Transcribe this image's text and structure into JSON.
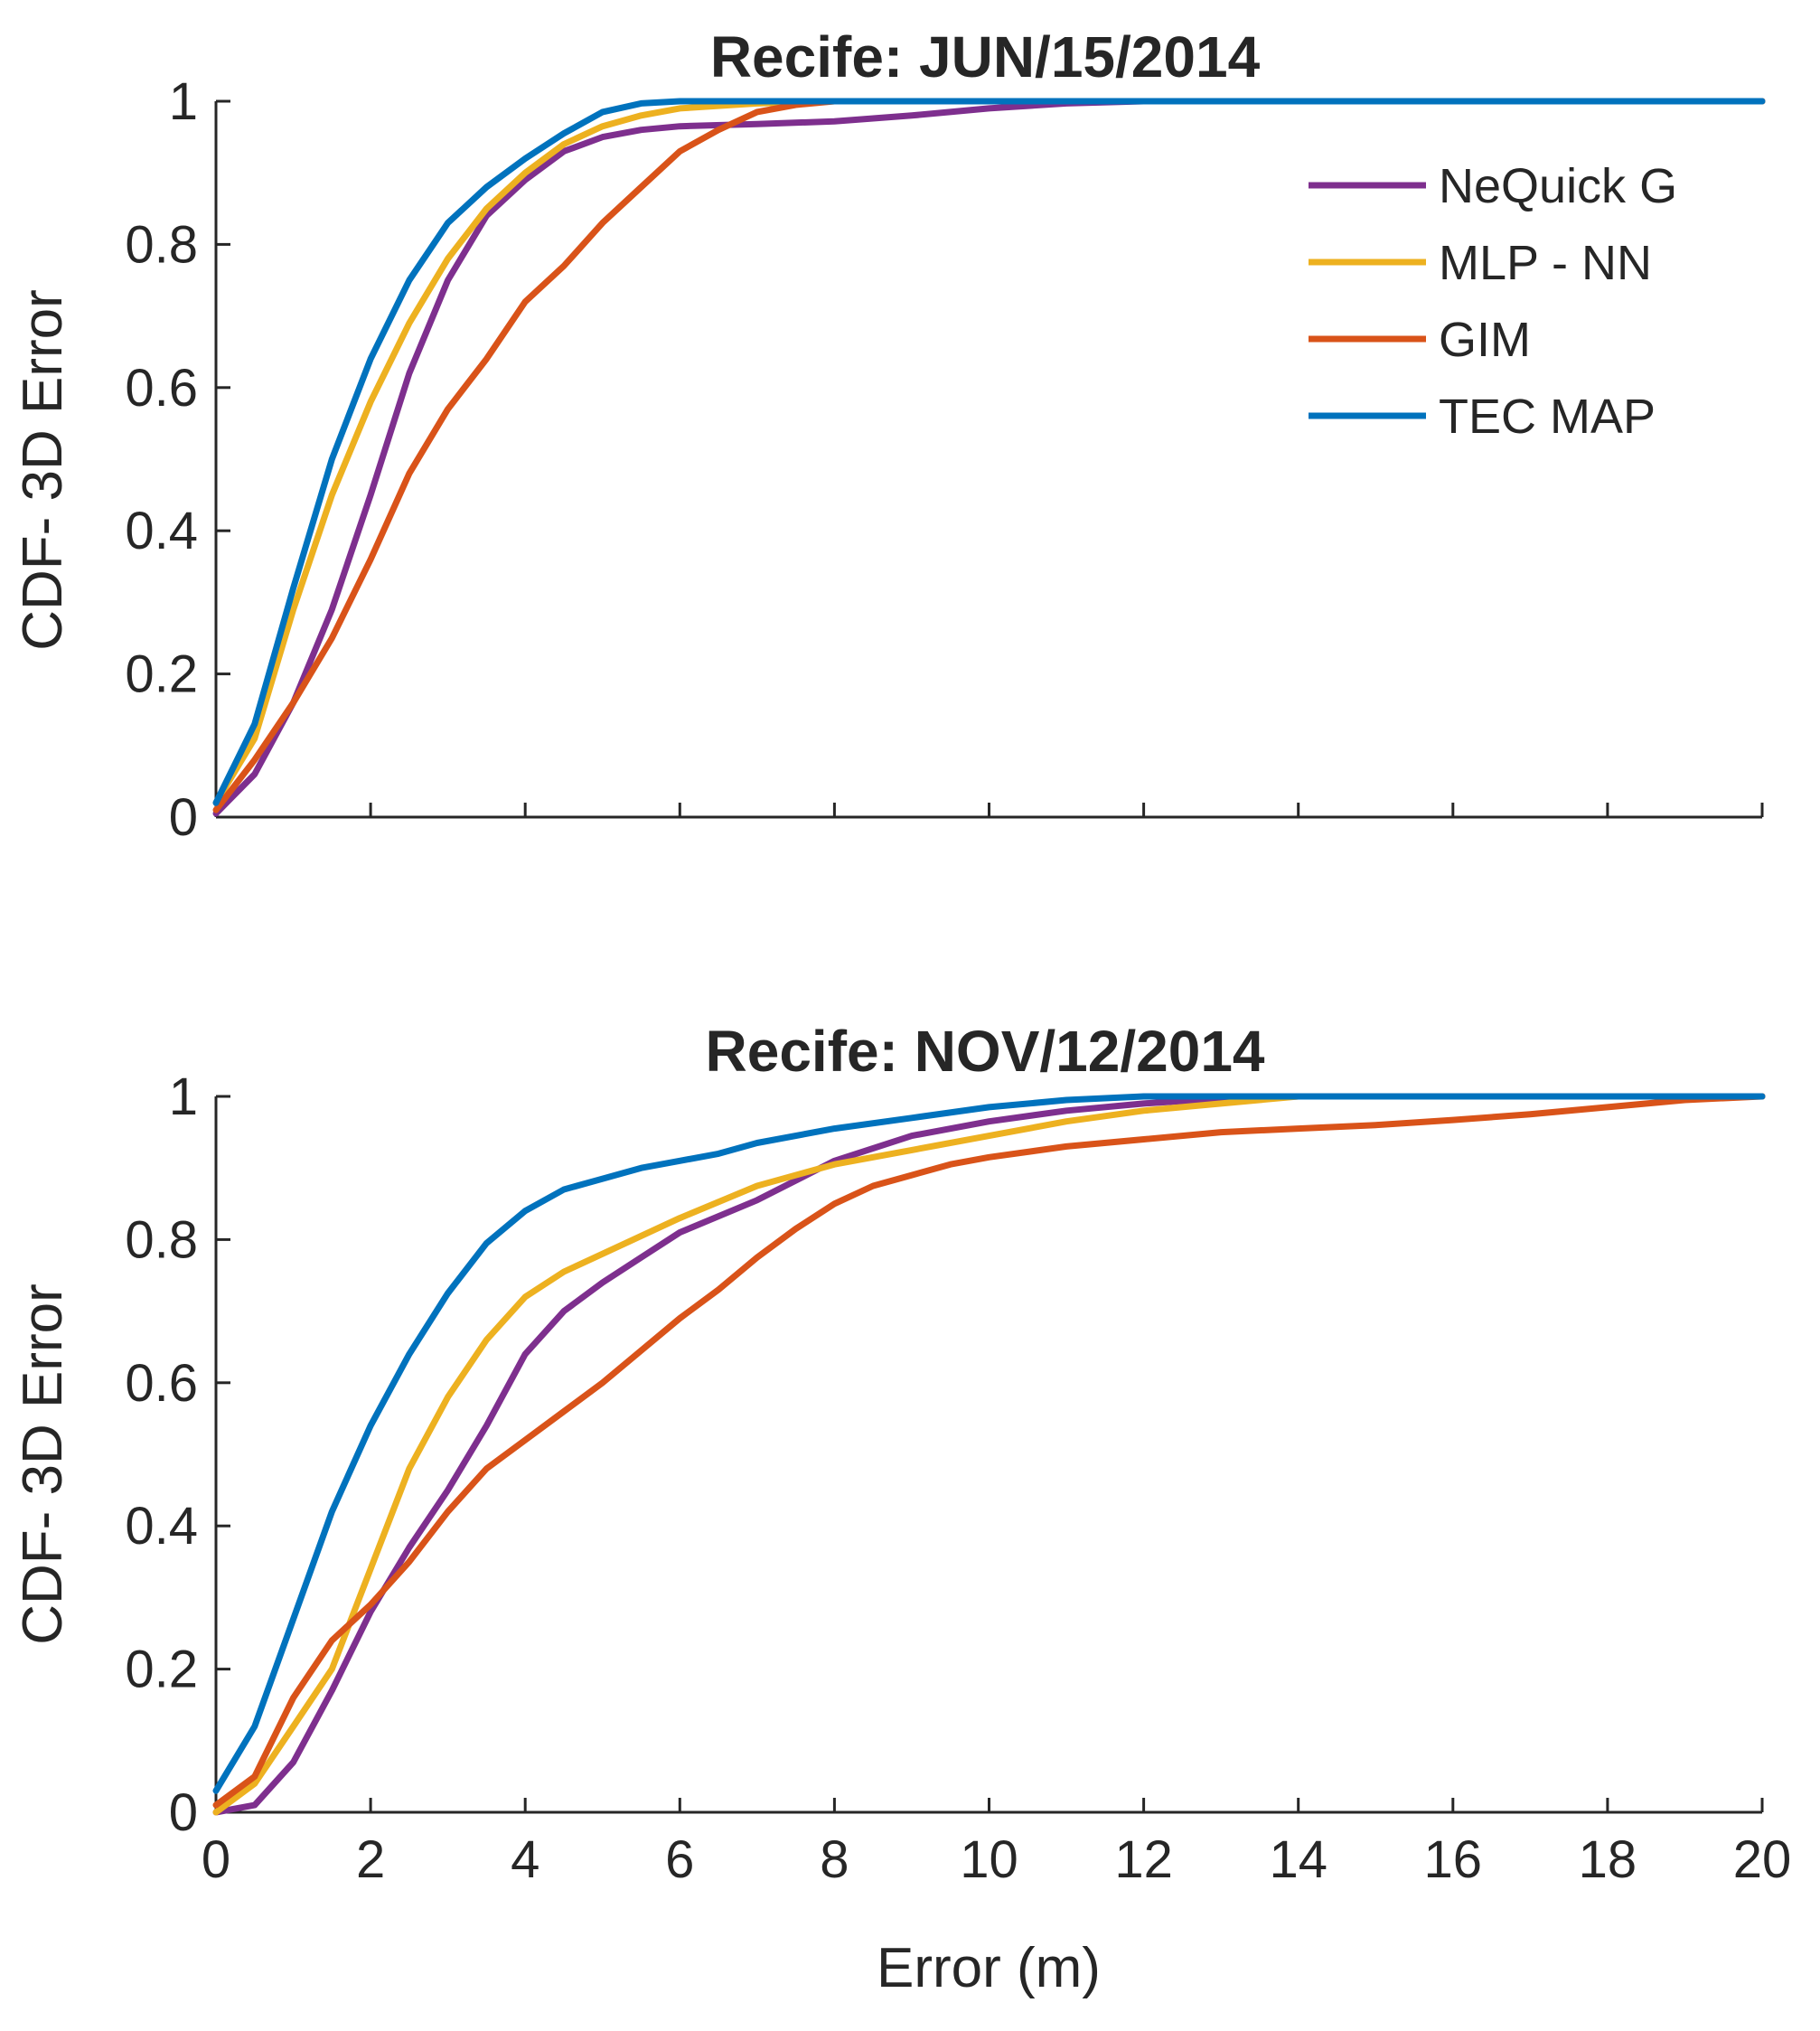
{
  "legend_placement": "top-right (upper chart)",
  "chart_data": [
    {
      "type": "line",
      "title": "Recife: JUN/15/2014",
      "xlabel": "",
      "ylabel": "CDF- 3D Error",
      "xlim": [
        0,
        20
      ],
      "ylim": [
        0,
        1
      ],
      "xticks": [
        0,
        2,
        4,
        6,
        8,
        10,
        12,
        14,
        16,
        18,
        20
      ],
      "xtick_labels": [],
      "yticks": [
        0,
        0.2,
        0.4,
        0.6,
        0.8,
        1
      ],
      "ytick_labels": [
        "0",
        "0.2",
        "0.4",
        "0.6",
        "0.8",
        "1"
      ],
      "grid": false,
      "legend": true,
      "series": [
        {
          "name": "NeQuick G",
          "color": "#7E2F8E",
          "x": [
            0,
            0.5,
            1,
            1.5,
            2,
            2.5,
            3,
            3.5,
            4,
            4.5,
            5,
            5.5,
            6,
            7,
            8,
            9,
            10,
            11,
            12,
            14,
            20
          ],
          "y": [
            0.005,
            0.06,
            0.16,
            0.29,
            0.45,
            0.62,
            0.75,
            0.84,
            0.89,
            0.93,
            0.95,
            0.96,
            0.965,
            0.968,
            0.972,
            0.98,
            0.99,
            0.997,
            1.0,
            1.0,
            1.0
          ]
        },
        {
          "name": "MLP - NN",
          "color": "#EDB120",
          "x": [
            0,
            0.5,
            1,
            1.5,
            2,
            2.5,
            3,
            3.5,
            4,
            4.5,
            5,
            5.5,
            6,
            7,
            8,
            20
          ],
          "y": [
            0.02,
            0.11,
            0.29,
            0.45,
            0.58,
            0.69,
            0.78,
            0.85,
            0.9,
            0.94,
            0.965,
            0.98,
            0.99,
            0.997,
            1.0,
            1.0
          ]
        },
        {
          "name": "GIM",
          "color": "#D95319",
          "x": [
            0,
            0.5,
            1,
            1.5,
            2,
            2.5,
            3,
            3.5,
            4,
            4.5,
            5,
            5.5,
            6,
            6.5,
            7,
            7.5,
            8,
            20
          ],
          "y": [
            0.01,
            0.08,
            0.16,
            0.25,
            0.36,
            0.48,
            0.57,
            0.64,
            0.72,
            0.77,
            0.83,
            0.88,
            0.93,
            0.96,
            0.985,
            0.995,
            1.0,
            1.0
          ]
        },
        {
          "name": "TEC MAP",
          "color": "#0072BD",
          "x": [
            0,
            0.5,
            1,
            1.5,
            2,
            2.5,
            3,
            3.5,
            4,
            4.5,
            5,
            5.5,
            6,
            20
          ],
          "y": [
            0.02,
            0.13,
            0.32,
            0.5,
            0.64,
            0.75,
            0.83,
            0.88,
            0.92,
            0.955,
            0.985,
            0.997,
            1.0,
            1.0
          ]
        }
      ]
    },
    {
      "type": "line",
      "title": "Recife: NOV/12/2014",
      "xlabel": "Error (m)",
      "ylabel": "CDF- 3D Error",
      "xlim": [
        0,
        20
      ],
      "ylim": [
        0,
        1
      ],
      "xticks": [
        0,
        2,
        4,
        6,
        8,
        10,
        12,
        14,
        16,
        18,
        20
      ],
      "xtick_labels": [
        "0",
        "2",
        "4",
        "6",
        "8",
        "10",
        "12",
        "14",
        "16",
        "18",
        "20"
      ],
      "yticks": [
        0,
        0.2,
        0.4,
        0.6,
        0.8,
        1
      ],
      "ytick_labels": [
        "0",
        "0.2",
        "0.4",
        "0.6",
        "0.8",
        "1"
      ],
      "grid": false,
      "legend": false,
      "series": [
        {
          "name": "NeQuick G",
          "color": "#7E2F8E",
          "x": [
            0,
            0.5,
            1,
            1.5,
            2,
            2.5,
            3,
            3.5,
            4,
            4.5,
            5,
            5.5,
            6,
            7,
            8,
            9,
            10,
            11,
            12,
            13,
            14,
            20
          ],
          "y": [
            0.0,
            0.01,
            0.07,
            0.17,
            0.28,
            0.37,
            0.45,
            0.54,
            0.64,
            0.7,
            0.74,
            0.775,
            0.81,
            0.855,
            0.91,
            0.945,
            0.965,
            0.98,
            0.99,
            0.997,
            1.0,
            1.0
          ]
        },
        {
          "name": "MLP - NN",
          "color": "#EDB120",
          "x": [
            0,
            0.5,
            1,
            1.5,
            2,
            2.5,
            3,
            3.5,
            4,
            4.5,
            5,
            6,
            7,
            8,
            9,
            10,
            11,
            12,
            13,
            14,
            20
          ],
          "y": [
            0.0,
            0.04,
            0.12,
            0.2,
            0.34,
            0.48,
            0.58,
            0.66,
            0.72,
            0.755,
            0.78,
            0.83,
            0.875,
            0.905,
            0.925,
            0.945,
            0.965,
            0.98,
            0.99,
            1.0,
            1.0
          ]
        },
        {
          "name": "GIM",
          "color": "#D95319",
          "x": [
            0,
            0.5,
            1,
            1.5,
            2,
            2.5,
            3,
            3.5,
            4,
            4.5,
            5,
            5.5,
            6,
            6.5,
            7,
            7.5,
            8,
            8.5,
            9,
            9.5,
            10,
            11,
            12,
            13,
            14,
            15,
            16,
            17,
            18,
            19,
            20
          ],
          "y": [
            0.01,
            0.05,
            0.16,
            0.24,
            0.29,
            0.35,
            0.42,
            0.48,
            0.52,
            0.56,
            0.6,
            0.645,
            0.69,
            0.73,
            0.775,
            0.815,
            0.85,
            0.875,
            0.89,
            0.905,
            0.915,
            0.93,
            0.94,
            0.95,
            0.955,
            0.96,
            0.967,
            0.975,
            0.985,
            0.995,
            1.0
          ]
        },
        {
          "name": "TEC MAP",
          "color": "#0072BD",
          "x": [
            0,
            0.5,
            1,
            1.5,
            2,
            2.5,
            3,
            3.5,
            4,
            4.5,
            5,
            5.5,
            6,
            6.5,
            7,
            8,
            9,
            10,
            11,
            12,
            13,
            20
          ],
          "y": [
            0.03,
            0.12,
            0.27,
            0.42,
            0.54,
            0.64,
            0.725,
            0.795,
            0.84,
            0.87,
            0.885,
            0.9,
            0.91,
            0.92,
            0.935,
            0.955,
            0.97,
            0.985,
            0.995,
            1.0,
            1.0,
            1.0
          ]
        }
      ]
    }
  ]
}
